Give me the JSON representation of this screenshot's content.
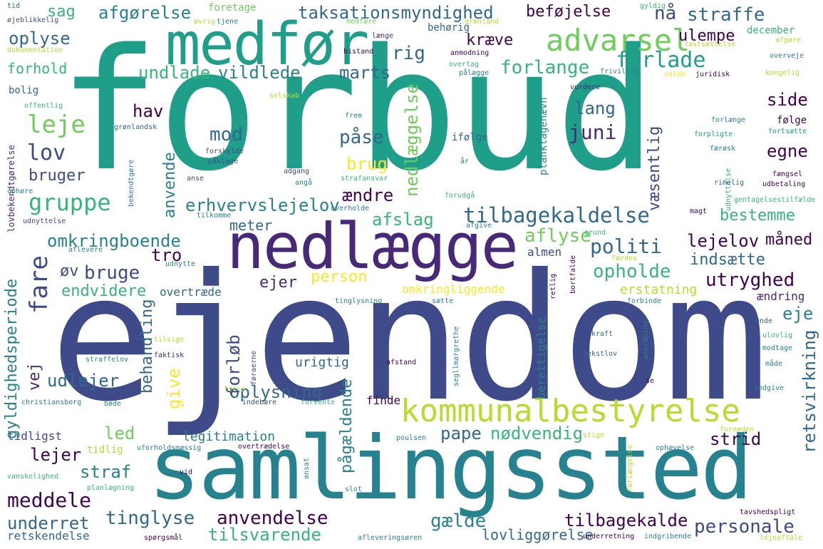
{
  "palette": [
    "#440154",
    "#482878",
    "#3e4a89",
    "#31688e",
    "#26828e",
    "#1f9e89",
    "#35b779",
    "#6ece58",
    "#b5de2b",
    "#fde725"
  ],
  "words": {
    "forbud": "forbud",
    "ejendom": "ejendom",
    "samlingssted": "samlingssted",
    "nedlaegge": "nedlægge",
    "medfor": "medfør",
    "kommunalbestyrelse": "kommunalbestyrelse",
    "advarsel": "advarsel",
    "tilbagekaldelse": "tilbagekaldelse",
    "taksationsmyndighed": "taksationsmyndighed",
    "afgorelse": "afgørelse",
    "sag": "sag",
    "befojelse": "beføjelse",
    "na": "nå",
    "straffe": "straffe",
    "oplyse": "oplyse",
    "forhold": "forhold",
    "leje": "leje",
    "lov": "lov",
    "gruppe": "gruppe",
    "bruger": "bruger",
    "undlade": "undlade",
    "vildlede": "vildlede",
    "marts": "marts",
    "rig": "rig",
    "kraeve": "kræve",
    "forlade": "forlade",
    "forlange": "forlange",
    "ulempe": "ulempe",
    "side": "side",
    "egne": "egne",
    "juni": "juni",
    "lang": "lang",
    "hav": "hav",
    "mod": "mod",
    "pase": "påse",
    "brug": "brug",
    "aendre": "ændre",
    "erhvervslejelov": "erhvervslejelov",
    "afslag": "afslag",
    "meter": "meter",
    "omkringboende": "omkringboende",
    "politi": "politi",
    "lejelov": "lejelov",
    "maned": "måned",
    "bestemme": "bestemme",
    "indsaette": "indsætte",
    "tro": "tro",
    "bruge": "bruge",
    "ov": "øv",
    "ejer": "ejer",
    "person": "person",
    "opholde": "opholde",
    "utryghed": "utryghed",
    "endvidere": "endvidere",
    "overtraede": "overtræde",
    "aflyse": "aflyse",
    "eje": "eje",
    "udlejer": "udlejer",
    "oplysning": "oplysning",
    "led": "led",
    "lejer": "lejer",
    "pape": "pape",
    "nodvendig": "nødvendig",
    "strid": "strid",
    "straf": "straf",
    "meddele": "meddele",
    "underret": "underret",
    "tinglyse": "tinglyse",
    "anvendelse": "anvendelse",
    "gaelde": "gælde",
    "tilbagekalde": "tilbagekalde",
    "personale": "personale",
    "tilsvarende": "tilsvarende",
    "lovliggorelse": "lovliggørelse",
    "retskendelse": "retskendelse",
    "tidligst": "tidligst",
    "legitimation": "legitimation",
    "finde": "finde",
    "urigtig": "urigtig",
    "almen": "almen",
    "omkringliggende": "omkringliggende",
    "erstatning": "erstatning",
    "aendring": "ændring",
    "fare": "fare",
    "vej": "vej",
    "gyldighedsperiode": "gyldighedsperiode",
    "behandling": "behandling",
    "give": "give",
    "forlob": "forløb",
    "anvende": "anvende",
    "paegaeldende": "pågældende",
    "nedlaeggelse": "nedlæggelse",
    "vaesentlig": "væsentlig",
    "retsvirkning": "retsvirkning",
    "berettigelse": "berettigelse",
    "planklagenaevn": "planklagenævn",
    "lovbekendtgorelse": "lovbekendtgørelse",
    "tid": "tid",
    "foretage": "foretage",
    "gyldig": "gyldig",
    "ojeblikkelig": "øjeblikkelig",
    "ovrig": "øvrig",
    "tjene": "tjene",
    "medfore": "medføre",
    "laenge": "længe",
    "behorig": "behørig",
    "december": "december",
    "afgore": "afgøre",
    "fastsaettelse": "fastsættelse",
    "dokumentation": "dokumentation",
    "bistand": "bistand",
    "anmodning": "anmodning",
    "overtag": "overtag",
    "palaegge": "pålægge",
    "frivillig": "frivillig",
    "udlob": "udløb",
    "juridisk": "juridisk",
    "kongelig": "kongelig",
    "overveje": "overveje",
    "bolig": "bolig",
    "vurdere": "vurdere",
    "selskab": "selskab",
    "offentlig": "offentlig",
    "frem": "frem",
    "gronlandsk": "grønlandsk",
    "ifolge": "ifølge",
    "forlaenge": "forlænge",
    "folge": "følge",
    "forpligte": "forpligte",
    "fortsaette": "fortsætte",
    "forskylde": "forskylde",
    "gronland": "grønland",
    "feorsk": "færøsk",
    "paklage": "påklage",
    "ar": "år",
    "adgang": "adgang",
    "anse": "anse",
    "anga": "angå",
    "strafansvar": "strafansvar",
    "fengsel": "fængsel",
    "rimelig": "rimelig",
    "udbetaling": "udbetaling",
    "ophore": "ophøre",
    "bekendtgore": "bekendtgøre",
    "tilkomme": "tilkomme",
    "overholde": "overholde",
    "forudga": "forudgå",
    "gentagelsestilfaelde": "gentagelsestilfælde",
    "magt": "magt",
    "udnyttelse": "udnyttelse",
    "afgive": "afgive",
    "grund": "grund",
    "aflevere": "aflevere",
    "udnytte": "udnytte",
    "faerdes": "færdes",
    "tinglysning": "tinglysning",
    "saette": "sætte",
    "retlig": "retlig",
    "bortfalde": "bortfalde",
    "forbinde": "forbinde",
    "unde": "unde",
    "tilsige": "tilsige",
    "kraft": "kraft",
    "ulovlig": "ulovlig",
    "faktisk": "faktisk",
    "modtage": "modtage",
    "straffelov": "straffelov",
    "foraerne": "føraerne",
    "tekstlov": "tekstlov",
    "afstand": "afstand",
    "anordning": "anordning",
    "made": "måde",
    "segllmargrethe": "segllmargrethe",
    "litra": "litra",
    "christiansborg": "christiansborg",
    "bode": "bøde",
    "indebaere": "indebære",
    "forvente": "forvente",
    "se": "se",
    "indgive": "indgive",
    "fornoden": "fornøden",
    "poulsen": "poulsen",
    "stige": "stige",
    "tidlig": "tidlig",
    "uforholdsmassig": "uforholdsmæssig",
    "overtraedelse": "overtrædelse",
    "ansat": "ansat",
    "ophaevelse": "ophævelse",
    "vanskelighed": "vanskelighed",
    "vid": "vid",
    "slot": "slot",
    "forlaengelse": "forlængelse",
    "planlaegning": "planlægning",
    "spoergsmal": "spørgsmål",
    "afleveringsoren": "afleveringsøren",
    "underretning": "underretning",
    "indgribende": "indgribende",
    "tavshedspligt": "tavshedspligt",
    "lejeaftale": "lejeaftale"
  }
}
